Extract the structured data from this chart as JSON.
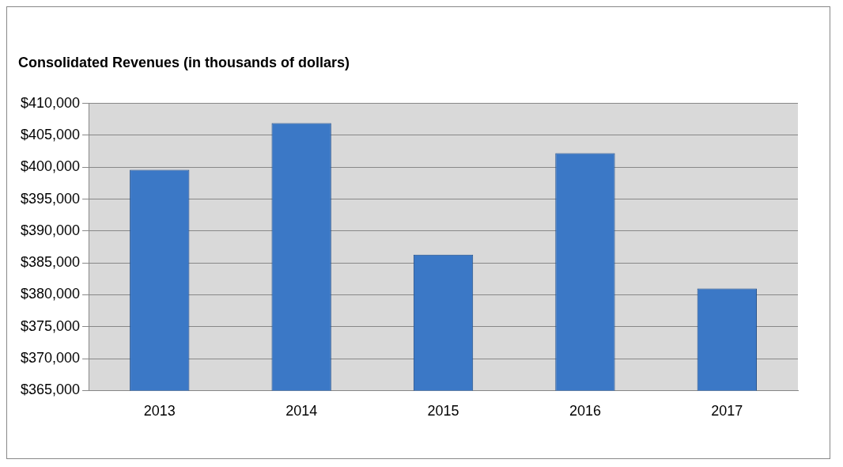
{
  "chart_data": {
    "type": "bar",
    "title": "Consolidated Revenues (in thousands of dollars)",
    "categories": [
      "2013",
      "2014",
      "2015",
      "2016",
      "2017"
    ],
    "values": [
      399600,
      406900,
      386300,
      402200,
      381000
    ],
    "color": "#3b78c6",
    "ylim": [
      365000,
      410000
    ],
    "yticks": [
      {
        "value": 365000,
        "label": "$365,000"
      },
      {
        "value": 370000,
        "label": "$370,000"
      },
      {
        "value": 375000,
        "label": "$375,000"
      },
      {
        "value": 380000,
        "label": "$380,000"
      },
      {
        "value": 385000,
        "label": "$385,000"
      },
      {
        "value": 390000,
        "label": "$390,000"
      },
      {
        "value": 395000,
        "label": "$395,000"
      },
      {
        "value": 400000,
        "label": "$400,000"
      },
      {
        "value": 405000,
        "label": "$405,000"
      },
      {
        "value": 410000,
        "label": "$410,000"
      }
    ],
    "grid": "y",
    "legend": false
  }
}
